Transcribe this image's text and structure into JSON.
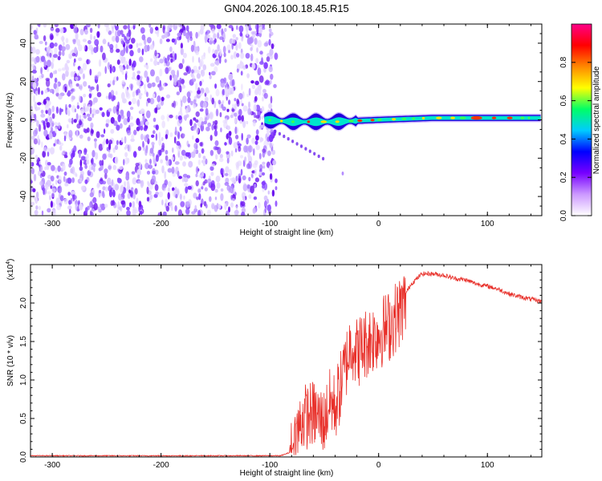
{
  "title": "GN04.2026.100.18.45.R15",
  "chart_data": [
    {
      "type": "heatmap",
      "title": "GN04.2026.100.18.45.R15",
      "xlabel": "Height of straight line (km)",
      "ylabel": "Frequency (Hz)",
      "xlim": [
        -320,
        150
      ],
      "ylim": [
        -50,
        50
      ],
      "xticks": [
        -300,
        -200,
        -100,
        0,
        100
      ],
      "yticks": [
        -40,
        -20,
        0,
        20,
        40
      ],
      "noise_region_km": [
        -320,
        -100
      ],
      "carrier_track": [
        {
          "x": -105,
          "f": 0
        },
        {
          "x": -80,
          "f": -1
        },
        {
          "x": -40,
          "f": -1
        },
        {
          "x": 0,
          "f": 0
        },
        {
          "x": 50,
          "f": 1
        },
        {
          "x": 150,
          "f": 1
        }
      ],
      "colorbar": {
        "label": "Normalized spectral amplitude",
        "range": [
          0.0,
          1.0
        ],
        "ticks": [
          "0.0",
          "0.2",
          "0.4",
          "0.6",
          "0.8"
        ],
        "tick_values": [
          0.0,
          0.2,
          0.4,
          0.6,
          0.8
        ],
        "colors": [
          "#ffffff",
          "#cc99ff",
          "#7700ff",
          "#0000ff",
          "#00ccff",
          "#00ff66",
          "#ffff00",
          "#ff8800",
          "#ff0000",
          "#ff0088"
        ]
      }
    },
    {
      "type": "line",
      "xlabel": "Height of straight line (km)",
      "ylabel": "SNR (10 * v/v)",
      "yscale_label": "(x10",
      "yscale_exp": "4",
      "xlim": [
        -320,
        150
      ],
      "ylim": [
        0,
        2.5
      ],
      "xticks": [
        -300,
        -200,
        -100,
        0,
        100
      ],
      "yticks": [
        "0.0",
        "0.5",
        "1.0",
        "1.5",
        "2.0"
      ],
      "ytick_values": [
        0.0,
        0.5,
        1.0,
        1.5,
        2.0
      ],
      "color": "#e8302a",
      "series": [
        {
          "name": "SNR",
          "points": [
            [
              -320,
              0.01
            ],
            [
              -200,
              0.01
            ],
            [
              -90,
              0.01
            ],
            [
              -82,
              0.05
            ],
            [
              -78,
              0.25
            ],
            [
              -70,
              0.6
            ],
            [
              -60,
              0.65
            ],
            [
              -50,
              0.55
            ],
            [
              -45,
              0.8
            ],
            [
              -40,
              0.75
            ],
            [
              -35,
              1.0
            ],
            [
              -30,
              1.3
            ],
            [
              -25,
              1.6
            ],
            [
              -20,
              1.45
            ],
            [
              -10,
              1.6
            ],
            [
              0,
              1.7
            ],
            [
              10,
              1.8
            ],
            [
              20,
              2.0
            ],
            [
              30,
              2.25
            ],
            [
              40,
              2.38
            ],
            [
              50,
              2.38
            ],
            [
              60,
              2.36
            ],
            [
              70,
              2.32
            ],
            [
              80,
              2.3
            ],
            [
              90,
              2.25
            ],
            [
              100,
              2.22
            ],
            [
              110,
              2.18
            ],
            [
              120,
              2.12
            ],
            [
              130,
              2.08
            ],
            [
              140,
              2.05
            ],
            [
              150,
              2.02
            ]
          ]
        }
      ]
    }
  ]
}
